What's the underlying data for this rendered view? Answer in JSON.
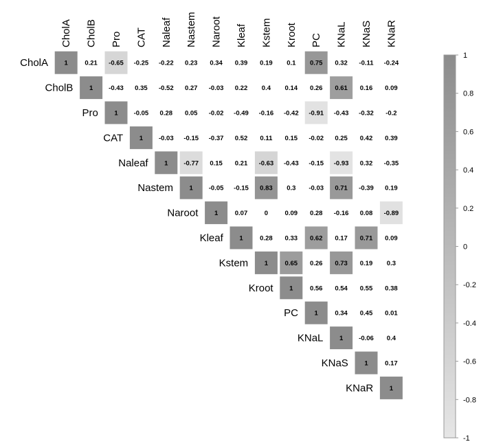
{
  "chart_data": {
    "type": "heatmap",
    "variables": [
      "CholA",
      "CholB",
      "Pro",
      "CAT",
      "Naleaf",
      "Nastem",
      "Naroot",
      "Kleaf",
      "Kstem",
      "Kroot",
      "PC",
      "KNaL",
      "KNaS",
      "KNaR"
    ],
    "matrix": [
      [
        "1",
        "0.21",
        "-0.65",
        "-0.25",
        "-0.22",
        "0.23",
        "0.34",
        "0.39",
        "0.19",
        "0.1",
        "0.75",
        "0.32",
        "-0.11",
        "-0.24"
      ],
      [
        "1",
        "-0.43",
        "0.35",
        "-0.52",
        "0.27",
        "-0.03",
        "0.22",
        "0.4",
        "0.14",
        "0.26",
        "0.61",
        "0.16",
        "0.09"
      ],
      [
        "1",
        "-0.05",
        "0.28",
        "0.05",
        "-0.02",
        "-0.49",
        "-0.16",
        "-0.42",
        "-0.91",
        "-0.43",
        "-0.32",
        "-0.2"
      ],
      [
        "1",
        "-0.03",
        "-0.15",
        "-0.37",
        "0.52",
        "0.11",
        "0.15",
        "-0.02",
        "0.25",
        "0.42",
        "0.39"
      ],
      [
        "1",
        "-0.77",
        "0.15",
        "0.21",
        "-0.63",
        "-0.43",
        "-0.15",
        "-0.93",
        "0.32",
        "-0.35"
      ],
      [
        "1",
        "-0.05",
        "-0.15",
        "0.83",
        "0.3",
        "-0.03",
        "0.71",
        "-0.39",
        "0.19"
      ],
      [
        "1",
        "0.07",
        "0",
        "0.09",
        "0.28",
        "-0.16",
        "0.08",
        "-0.89"
      ],
      [
        "1",
        "0.28",
        "0.33",
        "0.62",
        "0.17",
        "0.71",
        "0.09"
      ],
      [
        "1",
        "0.65",
        "0.26",
        "0.73",
        "0.19",
        "0.3"
      ],
      [
        "1",
        "0.56",
        "0.54",
        "0.55",
        "0.38"
      ],
      [
        "1",
        "0.34",
        "0.45",
        "0.01"
      ],
      [
        "1",
        "-0.06",
        "0.4"
      ],
      [
        "1",
        "0.17"
      ],
      [
        "1"
      ]
    ],
    "colorbar": {
      "min": -1,
      "max": 1,
      "ticks": [
        "1",
        "0.8",
        "0.6",
        "0.4",
        "0.2",
        "0",
        "-0.2",
        "-0.4",
        "-0.6",
        "-0.8",
        "-1"
      ],
      "color_low": "#e6e6e6",
      "color_high": "#8c8c8c"
    },
    "significance_threshold": 0.6
  }
}
